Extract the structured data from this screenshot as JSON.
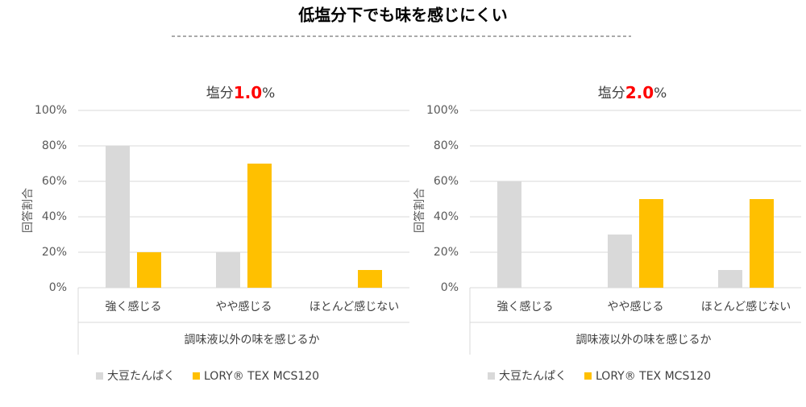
{
  "title": "低塩分下でも味を感じにくい",
  "chart_data": [
    {
      "type": "bar",
      "title": [
        "塩分",
        "1.0",
        "%"
      ],
      "y_label": "回答割合",
      "x_label": "調味液以外の味を感じるか",
      "categories": [
        "強く感じる",
        "やや感じる",
        "ほとんど感じない"
      ],
      "series": [
        {
          "name": "大豆たんぱく",
          "color": "#d9d9d9",
          "values": [
            80,
            20,
            0
          ]
        },
        {
          "name": "LORY® TEX MCS120",
          "color": "#ffc000",
          "values": [
            20,
            70,
            10
          ]
        }
      ],
      "ylim": [
        0,
        100
      ],
      "yticks": [
        {
          "value": 0,
          "label": "0%"
        },
        {
          "value": 20,
          "label": "20%"
        },
        {
          "value": 40,
          "label": "40%"
        },
        {
          "value": 60,
          "label": "60%"
        },
        {
          "value": 80,
          "label": "80%"
        },
        {
          "value": 100,
          "label": "100%"
        }
      ],
      "grid": true
    },
    {
      "type": "bar",
      "title": [
        "塩分",
        "2.0",
        "%"
      ],
      "y_label": "回答割合",
      "x_label": "調味液以外の味を感じるか",
      "categories": [
        "強く感じる",
        "やや感じる",
        "ほとんど感じない"
      ],
      "series": [
        {
          "name": "大豆たんぱく",
          "color": "#d9d9d9",
          "values": [
            60,
            30,
            10
          ]
        },
        {
          "name": "LORY® TEX MCS120",
          "color": "#ffc000",
          "values": [
            0,
            50,
            50
          ]
        }
      ],
      "ylim": [
        0,
        100
      ],
      "yticks": [
        {
          "value": 0,
          "label": "0%"
        },
        {
          "value": 20,
          "label": "20%"
        },
        {
          "value": 40,
          "label": "40%"
        },
        {
          "value": 60,
          "label": "60%"
        },
        {
          "value": 80,
          "label": "80%"
        },
        {
          "value": 100,
          "label": "100%"
        }
      ],
      "grid": true
    }
  ]
}
